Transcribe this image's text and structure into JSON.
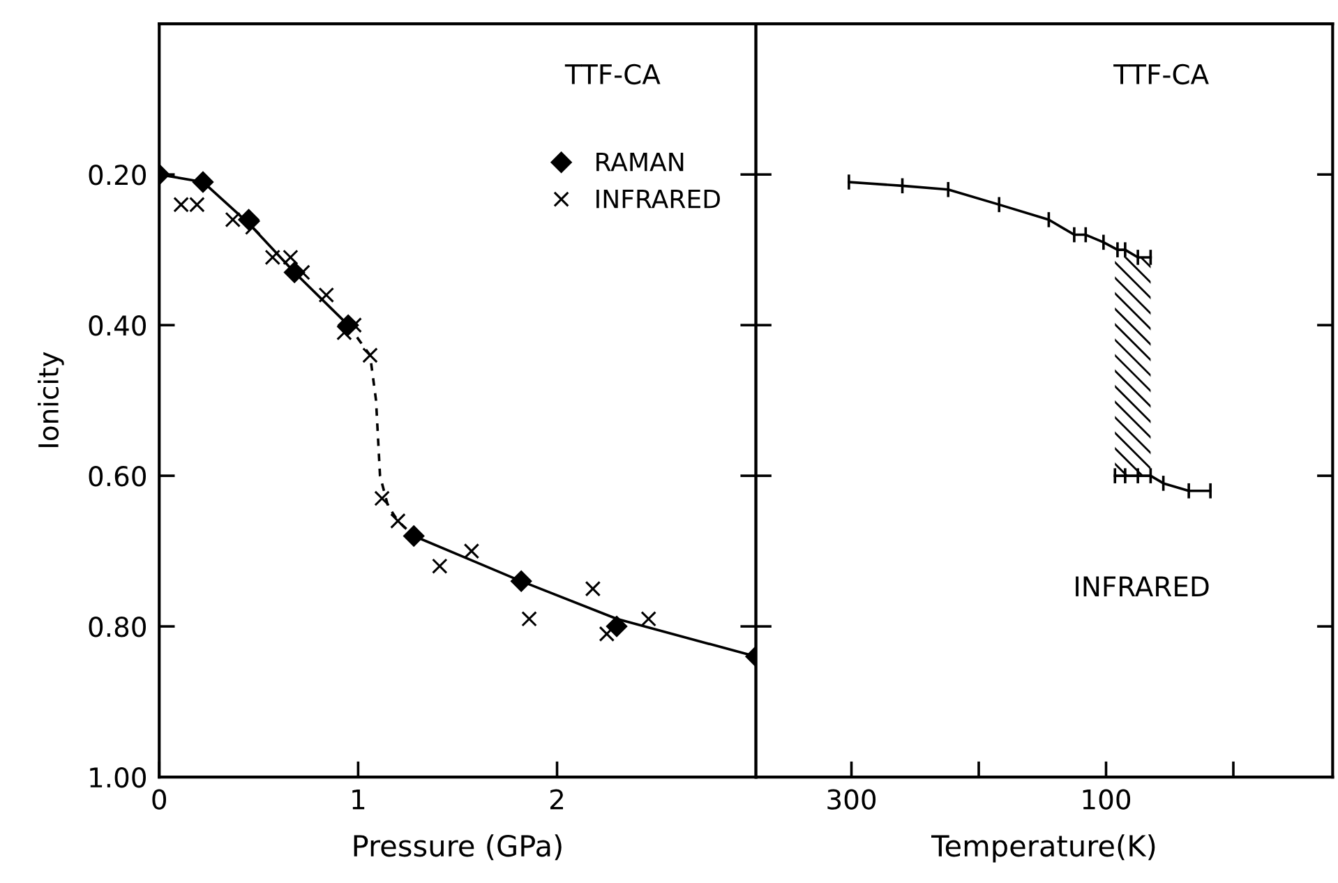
{
  "chart_data": [
    {
      "type": "scatter",
      "xlabel": "Pressure (GPa)",
      "ylabel": "Ionicity",
      "annotations": [
        "TTF-CA"
      ],
      "legend": "top right",
      "xlim": [
        0,
        3.0
      ],
      "ylim": [
        1.0,
        0.0
      ],
      "xticks": [
        0,
        1,
        2
      ],
      "yticks": [
        {
          "value": 0.2,
          "label": "0.20"
        },
        {
          "value": 0.4,
          "label": "0.40"
        },
        {
          "value": 0.6,
          "label": "0.60"
        },
        {
          "value": 0.8,
          "label": "0.80"
        },
        {
          "value": 1.0,
          "label": "1.00"
        }
      ],
      "grid": false,
      "series": [
        {
          "type": "line",
          "color": "#000000",
          "marker": "none",
          "line_style": "solid",
          "x": [
            0,
            0.22,
            0.45,
            0.68,
            0.95
          ],
          "values": [
            0.2,
            0.21,
            0.265,
            0.33,
            0.4
          ]
        },
        {
          "type": "line",
          "color": "#000000",
          "marker": "none",
          "line_style": "dashed",
          "x": [
            0.95,
            1.06,
            1.09,
            1.11,
            1.15,
            1.2,
            1.28
          ],
          "values": [
            0.4,
            0.44,
            0.5,
            0.6,
            0.64,
            0.66,
            0.68
          ]
        },
        {
          "type": "line",
          "color": "#000000",
          "marker": "none",
          "line_style": "solid",
          "x": [
            1.28,
            1.55,
            1.82,
            2.3,
            3.0
          ],
          "values": [
            0.68,
            0.71,
            0.74,
            0.79,
            0.84
          ]
        },
        {
          "name": "RAMAN",
          "color": "#000000",
          "marker": "diamond",
          "x": [
            0,
            0.22,
            0.45,
            0.68,
            0.95,
            1.28,
            1.82,
            2.3,
            3.0
          ],
          "values": [
            0.2,
            0.21,
            0.26,
            0.33,
            0.4,
            0.68,
            0.74,
            0.8,
            0.84
          ]
        },
        {
          "name": "INFRARED",
          "color": "#000000",
          "marker": "cross",
          "x": [
            0.11,
            0.19,
            0.37,
            0.47,
            0.57,
            0.66,
            0.72,
            0.84,
            0.93,
            0.98,
            1.06,
            1.12,
            1.2,
            1.41,
            1.57,
            1.86,
            2.18,
            2.25,
            2.46
          ],
          "values": [
            0.24,
            0.24,
            0.26,
            0.27,
            0.31,
            0.31,
            0.33,
            0.36,
            0.41,
            0.4,
            0.44,
            0.63,
            0.66,
            0.72,
            0.7,
            0.79,
            0.75,
            0.81,
            0.79
          ]
        }
      ]
    },
    {
      "type": "line",
      "xlabel": "Temperature(K)",
      "annotations": [
        "TTF-CA",
        "INFRARED"
      ],
      "xlim": [
        375,
        -78
      ],
      "ylim": [
        1.0,
        0.0
      ],
      "xticks": [
        300,
        {
          "value": 200,
          "label": null
        },
        100,
        {
          "value": 0,
          "label": null
        }
      ],
      "yticks": [
        0.2,
        0.4,
        0.6,
        0.8,
        1.0
      ],
      "tick_labels": "x",
      "grid": false,
      "series": [
        {
          "color": "#000000",
          "marker": "none",
          "line_style": "solid",
          "x": [
            302,
            260,
            224,
            184,
            145,
            125,
            116,
            102,
            91,
            85,
            75,
            65
          ],
          "values": [
            0.21,
            0.215,
            0.22,
            0.24,
            0.26,
            0.28,
            0.28,
            0.29,
            0.3,
            0.3,
            0.31,
            0.31
          ],
          "errors": [
            0.01,
            0.01,
            0.01,
            0.01,
            0.01,
            0.01,
            0.01,
            0.01,
            0.01,
            0.01,
            0.01,
            0.01
          ]
        },
        {
          "color": "#000000",
          "marker": "none",
          "line_style": "solid",
          "x": [
            93,
            85,
            75,
            65,
            55,
            35,
            18
          ],
          "values": [
            0.6,
            0.6,
            0.6,
            0.6,
            0.61,
            0.62,
            0.62
          ],
          "errors": [
            0.01,
            0.01,
            0.01,
            0.01,
            0.01,
            0.01,
            0.01
          ]
        }
      ]
    }
  ]
}
